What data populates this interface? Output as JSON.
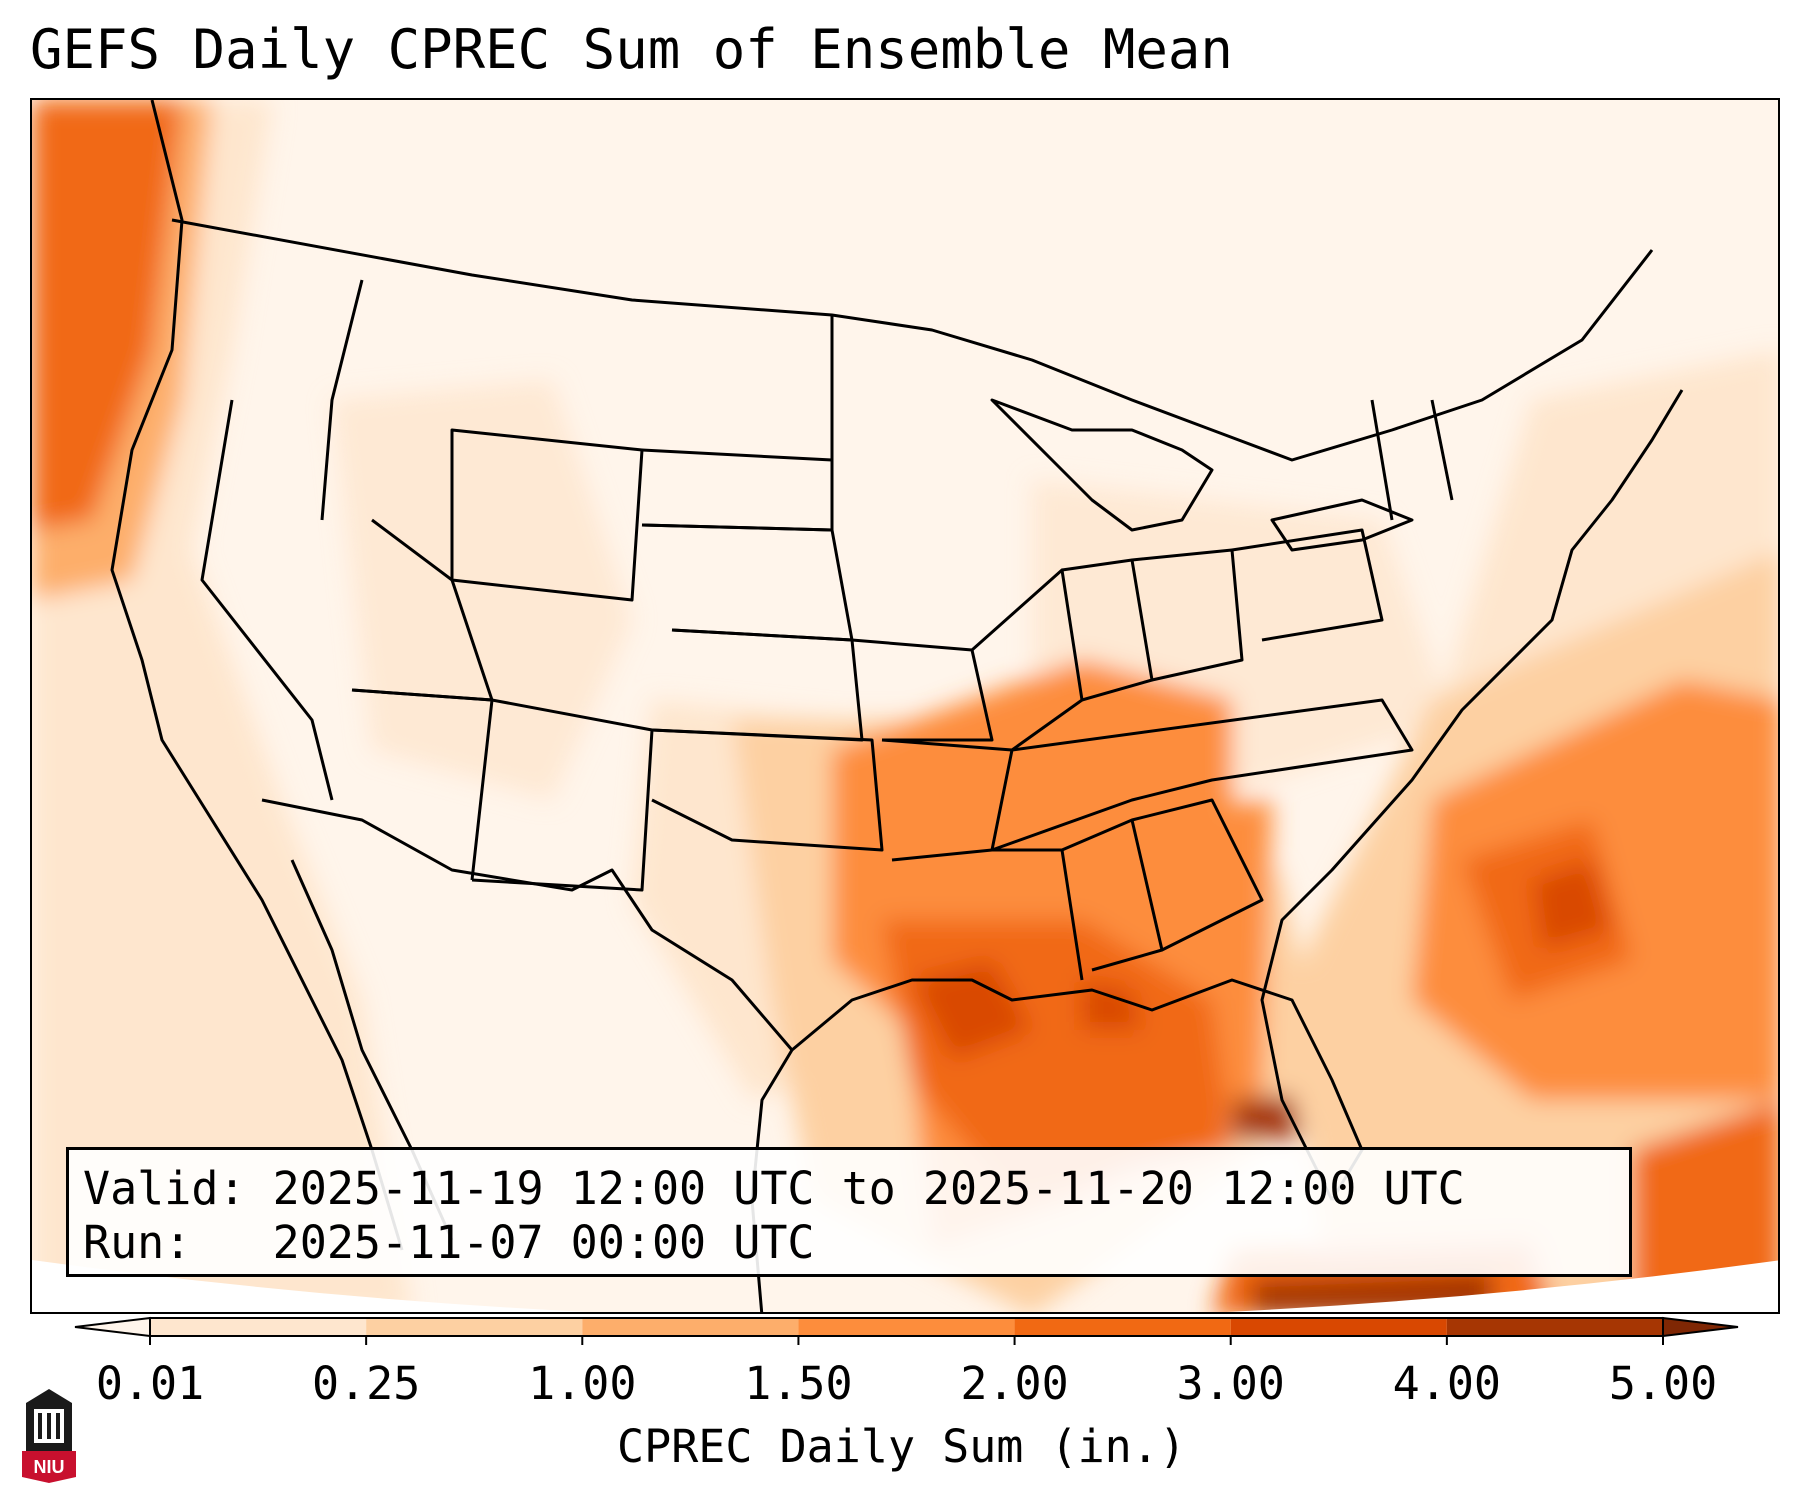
{
  "title": "GEFS Daily CPREC Sum of Ensemble Mean",
  "info": {
    "valid_label": "Valid:",
    "valid_value": "2025-11-19 12:00 UTC to 2025-11-20 12:00 UTC",
    "run_label": "Run:",
    "run_value": "2025-11-07 00:00 UTC"
  },
  "colorbar": {
    "label": "CPREC Daily Sum (in.)",
    "ticks": [
      "0.01",
      "0.25",
      "1.00",
      "1.50",
      "2.00",
      "3.00",
      "4.00",
      "5.00"
    ],
    "colors": [
      "#fff5eb",
      "#fee6ce",
      "#fdd0a2",
      "#fdae6b",
      "#fd8d3c",
      "#f16913",
      "#d94801",
      "#a63603",
      "#7f2704"
    ],
    "extend": "both"
  },
  "logo": {
    "text": "NIU",
    "icon": "university-building-icon",
    "color": "#c8102e"
  },
  "map": {
    "projection": "Lambert Conformal",
    "region": "Contiguous United States",
    "boundaries": [
      "coastlines",
      "US states",
      "Canada",
      "Mexico"
    ],
    "icons": [
      "map-boundaries-icon"
    ]
  }
}
